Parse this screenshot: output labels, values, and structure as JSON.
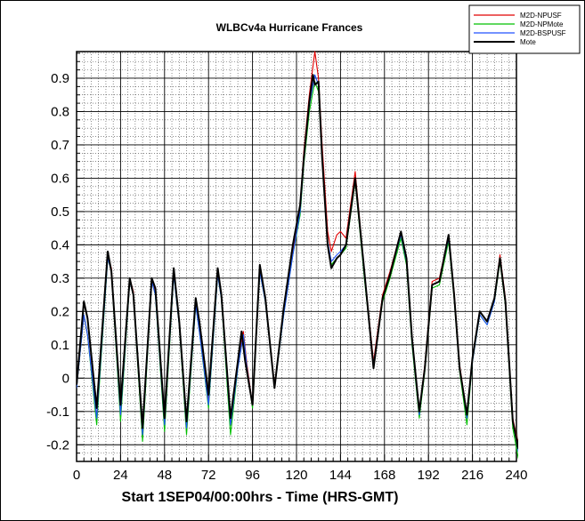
{
  "chart_data": {
    "type": "line",
    "title": "WLBCv4a Hurricane Frances",
    "xlabel": "Start 1SEP04/00:00hrs - Time (HRS-GMT)",
    "ylabel": "",
    "xlim": [
      0,
      240
    ],
    "ylim": [
      -0.25,
      0.98
    ],
    "x_ticks": [
      0,
      24,
      48,
      72,
      96,
      120,
      144,
      168,
      192,
      216,
      240
    ],
    "y_ticks": [
      -0.2,
      -0.1,
      0,
      0.1,
      0.2,
      0.3,
      0.4,
      0.5,
      0.6,
      0.7,
      0.8,
      0.9
    ],
    "grid": true,
    "legend_position": "top-right",
    "series": [
      {
        "name": "M2D-NPUSF",
        "color": "#e00000",
        "points": [
          [
            0,
            -0.03
          ],
          [
            4,
            0.19
          ],
          [
            6,
            0.13
          ],
          [
            11,
            -0.12
          ],
          [
            17,
            0.37
          ],
          [
            19,
            0.33
          ],
          [
            24,
            -0.11
          ],
          [
            29,
            0.3
          ],
          [
            31,
            0.26
          ],
          [
            36,
            -0.18
          ],
          [
            41,
            0.3
          ],
          [
            43,
            0.26
          ],
          [
            48,
            -0.14
          ],
          [
            53,
            0.32
          ],
          [
            56,
            0.17
          ],
          [
            60,
            -0.16
          ],
          [
            65,
            0.23
          ],
          [
            67,
            0.15
          ],
          [
            72,
            -0.08
          ],
          [
            77,
            0.32
          ],
          [
            79,
            0.25
          ],
          [
            84,
            -0.14
          ],
          [
            88,
            0.04
          ],
          [
            91,
            0.14
          ],
          [
            93,
            0.04
          ],
          [
            96,
            -0.08
          ],
          [
            100,
            0.33
          ],
          [
            103,
            0.24
          ],
          [
            108,
            -0.02
          ],
          [
            113,
            0.2
          ],
          [
            118,
            0.38
          ],
          [
            122,
            0.52
          ],
          [
            124,
            0.68
          ],
          [
            127,
            0.85
          ],
          [
            130,
            0.98
          ],
          [
            132,
            0.9
          ],
          [
            134,
            0.7
          ],
          [
            137,
            0.44
          ],
          [
            139,
            0.38
          ],
          [
            142,
            0.43
          ],
          [
            144,
            0.44
          ],
          [
            147,
            0.42
          ],
          [
            152,
            0.62
          ],
          [
            157,
            0.32
          ],
          [
            162,
            0.05
          ],
          [
            167,
            0.25
          ],
          [
            171,
            0.32
          ],
          [
            177,
            0.44
          ],
          [
            180,
            0.36
          ],
          [
            183,
            0.12
          ],
          [
            187,
            -0.1
          ],
          [
            190,
            0.04
          ],
          [
            194,
            0.29
          ],
          [
            198,
            0.3
          ],
          [
            203,
            0.43
          ],
          [
            206,
            0.26
          ],
          [
            209,
            0.04
          ],
          [
            213,
            -0.11
          ],
          [
            216,
            0.06
          ],
          [
            220,
            0.2
          ],
          [
            224,
            0.17
          ],
          [
            228,
            0.24
          ],
          [
            231,
            0.37
          ],
          [
            234,
            0.24
          ],
          [
            238,
            -0.12
          ],
          [
            241,
            -0.2
          ],
          [
            243,
            -0.1
          ]
        ]
      },
      {
        "name": "M2D-NPMote",
        "color": "#00c000",
        "points": [
          [
            0,
            -0.03
          ],
          [
            4,
            0.19
          ],
          [
            6,
            0.13
          ],
          [
            11,
            -0.14
          ],
          [
            17,
            0.36
          ],
          [
            19,
            0.32
          ],
          [
            24,
            -0.13
          ],
          [
            29,
            0.29
          ],
          [
            31,
            0.25
          ],
          [
            36,
            -0.19
          ],
          [
            41,
            0.29
          ],
          [
            43,
            0.25
          ],
          [
            48,
            -0.16
          ],
          [
            53,
            0.31
          ],
          [
            56,
            0.16
          ],
          [
            60,
            -0.17
          ],
          [
            65,
            0.22
          ],
          [
            67,
            0.14
          ],
          [
            72,
            -0.09
          ],
          [
            77,
            0.31
          ],
          [
            79,
            0.24
          ],
          [
            84,
            -0.17
          ],
          [
            88,
            0.03
          ],
          [
            91,
            0.13
          ],
          [
            93,
            0.03
          ],
          [
            96,
            -0.09
          ],
          [
            100,
            0.32
          ],
          [
            103,
            0.23
          ],
          [
            108,
            -0.03
          ],
          [
            113,
            0.19
          ],
          [
            118,
            0.37
          ],
          [
            122,
            0.49
          ],
          [
            124,
            0.64
          ],
          [
            127,
            0.8
          ],
          [
            130,
            0.89
          ],
          [
            132,
            0.86
          ],
          [
            134,
            0.66
          ],
          [
            137,
            0.4
          ],
          [
            139,
            0.34
          ],
          [
            142,
            0.36
          ],
          [
            144,
            0.37
          ],
          [
            147,
            0.39
          ],
          [
            152,
            0.59
          ],
          [
            157,
            0.3
          ],
          [
            162,
            0.04
          ],
          [
            167,
            0.23
          ],
          [
            171,
            0.3
          ],
          [
            177,
            0.42
          ],
          [
            180,
            0.34
          ],
          [
            183,
            0.1
          ],
          [
            187,
            -0.12
          ],
          [
            190,
            0.02
          ],
          [
            194,
            0.27
          ],
          [
            198,
            0.28
          ],
          [
            203,
            0.41
          ],
          [
            206,
            0.24
          ],
          [
            209,
            0.02
          ],
          [
            213,
            -0.14
          ],
          [
            216,
            0.05
          ],
          [
            220,
            0.19
          ],
          [
            224,
            0.16
          ],
          [
            228,
            0.23
          ],
          [
            231,
            0.35
          ],
          [
            234,
            0.22
          ],
          [
            238,
            -0.15
          ],
          [
            241,
            -0.24
          ],
          [
            243,
            -0.12
          ]
        ]
      },
      {
        "name": "M2D-BSPUSF",
        "color": "#2050ff",
        "points": [
          [
            0,
            -0.03
          ],
          [
            4,
            0.19
          ],
          [
            6,
            0.13
          ],
          [
            11,
            -0.12
          ],
          [
            17,
            0.36
          ],
          [
            19,
            0.32
          ],
          [
            24,
            -0.11
          ],
          [
            29,
            0.29
          ],
          [
            31,
            0.25
          ],
          [
            36,
            -0.17
          ],
          [
            41,
            0.29
          ],
          [
            43,
            0.25
          ],
          [
            48,
            -0.14
          ],
          [
            53,
            0.31
          ],
          [
            56,
            0.16
          ],
          [
            60,
            -0.15
          ],
          [
            65,
            0.22
          ],
          [
            67,
            0.14
          ],
          [
            72,
            -0.08
          ],
          [
            77,
            0.31
          ],
          [
            79,
            0.24
          ],
          [
            84,
            -0.14
          ],
          [
            88,
            0.03
          ],
          [
            91,
            0.13
          ],
          [
            93,
            0.03
          ],
          [
            96,
            -0.08
          ],
          [
            100,
            0.32
          ],
          [
            103,
            0.23
          ],
          [
            108,
            -0.03
          ],
          [
            113,
            0.19
          ],
          [
            118,
            0.37
          ],
          [
            122,
            0.5
          ],
          [
            124,
            0.65
          ],
          [
            127,
            0.82
          ],
          [
            130,
            0.91
          ],
          [
            132,
            0.88
          ],
          [
            134,
            0.67
          ],
          [
            137,
            0.41
          ],
          [
            139,
            0.35
          ],
          [
            142,
            0.37
          ],
          [
            144,
            0.38
          ],
          [
            147,
            0.4
          ],
          [
            152,
            0.6
          ],
          [
            157,
            0.31
          ],
          [
            162,
            0.04
          ],
          [
            167,
            0.24
          ],
          [
            171,
            0.31
          ],
          [
            177,
            0.43
          ],
          [
            180,
            0.35
          ],
          [
            183,
            0.11
          ],
          [
            187,
            -0.11
          ],
          [
            190,
            0.03
          ],
          [
            194,
            0.28
          ],
          [
            198,
            0.29
          ],
          [
            203,
            0.42
          ],
          [
            206,
            0.25
          ],
          [
            209,
            0.03
          ],
          [
            213,
            -0.12
          ],
          [
            216,
            0.05
          ],
          [
            220,
            0.19
          ],
          [
            224,
            0.16
          ],
          [
            228,
            0.23
          ],
          [
            231,
            0.36
          ],
          [
            234,
            0.23
          ],
          [
            238,
            -0.13
          ],
          [
            241,
            -0.22
          ],
          [
            243,
            -0.1
          ]
        ]
      },
      {
        "name": "Mote",
        "color": "#000000",
        "points": [
          [
            0,
            -0.02
          ],
          [
            4,
            0.23
          ],
          [
            6,
            0.18
          ],
          [
            11,
            -0.09
          ],
          [
            17,
            0.38
          ],
          [
            19,
            0.32
          ],
          [
            24,
            -0.08
          ],
          [
            29,
            0.3
          ],
          [
            31,
            0.25
          ],
          [
            36,
            -0.15
          ],
          [
            41,
            0.3
          ],
          [
            43,
            0.27
          ],
          [
            48,
            -0.12
          ],
          [
            53,
            0.33
          ],
          [
            56,
            0.17
          ],
          [
            60,
            -0.13
          ],
          [
            65,
            0.24
          ],
          [
            67,
            0.17
          ],
          [
            72,
            -0.05
          ],
          [
            77,
            0.33
          ],
          [
            79,
            0.25
          ],
          [
            84,
            -0.12
          ],
          [
            88,
            0.05
          ],
          [
            90,
            0.14
          ],
          [
            92,
            0.05
          ],
          [
            96,
            -0.08
          ],
          [
            100,
            0.34
          ],
          [
            103,
            0.24
          ],
          [
            108,
            -0.03
          ],
          [
            113,
            0.21
          ],
          [
            118,
            0.4
          ],
          [
            122,
            0.52
          ],
          [
            124,
            0.66
          ],
          [
            127,
            0.83
          ],
          [
            129,
            0.91
          ],
          [
            130,
            0.88
          ],
          [
            132,
            0.89
          ],
          [
            134,
            0.66
          ],
          [
            137,
            0.4
          ],
          [
            139,
            0.33
          ],
          [
            142,
            0.36
          ],
          [
            144,
            0.37
          ],
          [
            147,
            0.4
          ],
          [
            152,
            0.6
          ],
          [
            157,
            0.32
          ],
          [
            162,
            0.03
          ],
          [
            167,
            0.24
          ],
          [
            171,
            0.31
          ],
          [
            177,
            0.44
          ],
          [
            180,
            0.36
          ],
          [
            183,
            0.12
          ],
          [
            187,
            -0.1
          ],
          [
            190,
            0.03
          ],
          [
            194,
            0.28
          ],
          [
            198,
            0.29
          ],
          [
            203,
            0.43
          ],
          [
            206,
            0.25
          ],
          [
            209,
            0.03
          ],
          [
            213,
            -0.11
          ],
          [
            216,
            0.06
          ],
          [
            220,
            0.2
          ],
          [
            224,
            0.17
          ],
          [
            228,
            0.24
          ],
          [
            231,
            0.36
          ],
          [
            234,
            0.23
          ],
          [
            238,
            -0.13
          ],
          [
            241,
            -0.21
          ],
          [
            243,
            0.02
          ],
          [
            246,
            0.14
          ]
        ]
      }
    ]
  }
}
